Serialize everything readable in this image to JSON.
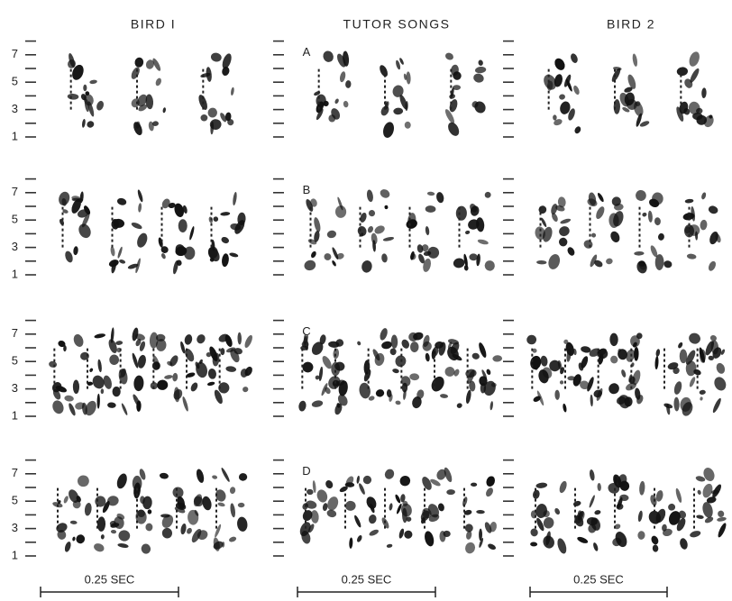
{
  "columns": [
    {
      "title": "BIRD I",
      "scale_bar": "0.25 SEC"
    },
    {
      "title": "TUTOR SONGS",
      "scale_bar": "0.25 SEC"
    },
    {
      "title": "BIRD 2",
      "scale_bar": "0.25 SEC"
    }
  ],
  "rows": [
    {
      "label": "A"
    },
    {
      "label": "B"
    },
    {
      "label": "C"
    },
    {
      "label": "D"
    }
  ],
  "frequency_tick_labels": [
    7,
    5,
    3,
    1
  ]
}
